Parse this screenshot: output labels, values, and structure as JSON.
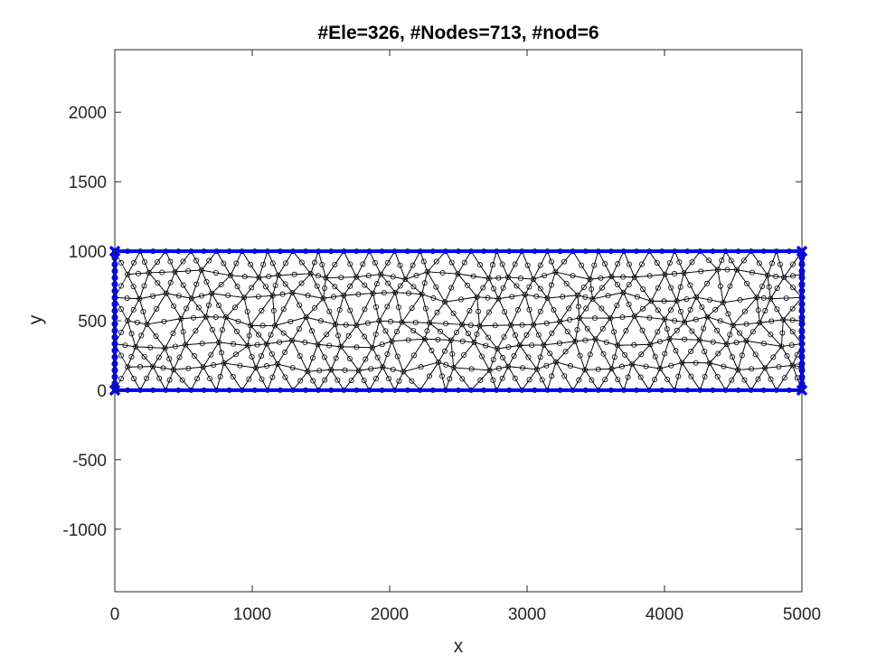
{
  "chart_data": {
    "type": "scatter",
    "title": "#Ele=326, #Nodes=713, #nod=6",
    "xlabel": "x",
    "ylabel": "y",
    "xlim": [
      0,
      5000
    ],
    "ylim": [
      -1450,
      2450
    ],
    "x_ticks": [
      "0",
      "1000",
      "2000",
      "3000",
      "4000",
      "5000"
    ],
    "y_ticks": [
      "2000",
      "1500",
      "1000",
      "500",
      "0",
      "-500",
      "-1000"
    ],
    "domain_rectangle": {
      "x": [
        0,
        5000
      ],
      "y": [
        0,
        1000
      ]
    },
    "corner_nodes": [
      [
        0,
        0
      ],
      [
        5000,
        0
      ],
      [
        5000,
        1000
      ],
      [
        0,
        1000
      ]
    ],
    "boundary_color": "#0000ff",
    "mesh_color": "#000000",
    "grid": false,
    "mesh": {
      "elements": 326,
      "nodes": 713,
      "nodes_per_element": 6
    }
  }
}
